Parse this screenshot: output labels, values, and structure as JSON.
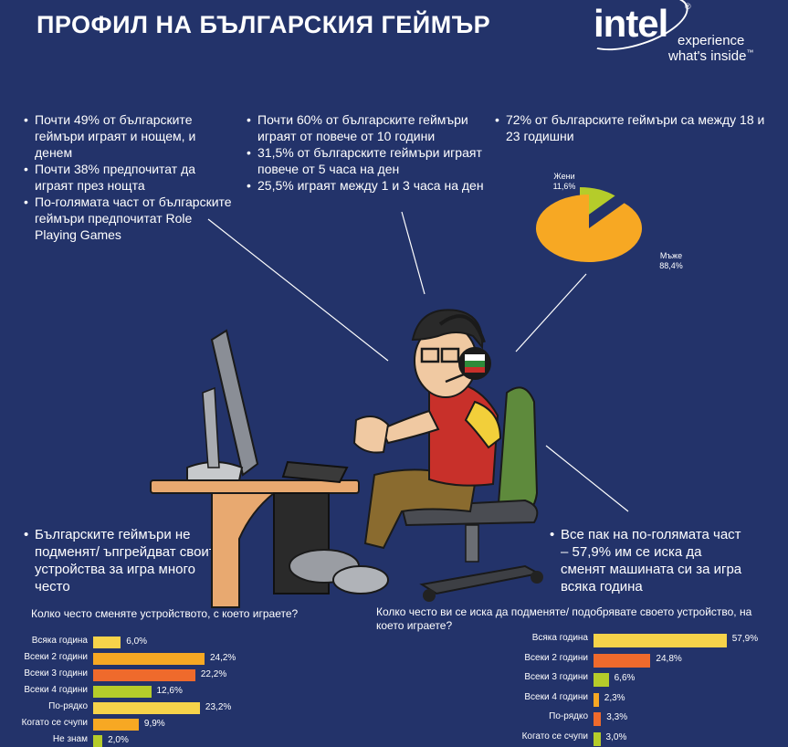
{
  "header": {
    "title": "ПРОФИЛ НА БЪЛГАРСКИЯ ГЕЙМЪР",
    "logo_word": "intel",
    "logo_reg": "®",
    "logo_tag1": "experience",
    "logo_tag2": "what's inside",
    "logo_tm": "™"
  },
  "facts": {
    "left": [
      "Почти 49% от българските геймъри играят и нощем, и денем",
      "Почти 38% предпочитат да играят през нощта",
      "По-голямата част от българските геймъри предпочитат Role Playing Games"
    ],
    "middle": [
      "Почти 60% от българските геймъри играят от повече от 10 години",
      "31,5% от българските геймъри играят повече от 5 часа на ден",
      "25,5% играят между 1 и 3 часа на ден"
    ],
    "right": [
      "72% от българските геймъри са между 18 и 23 годишни"
    ],
    "bottom_left": [
      "Българските геймъри не подменят/ ъпгрейдват своите устройства за игра много често"
    ],
    "bottom_right": [
      "Все пак на по-голямата част – 57,9% им се иска да сменят машината си за игра всяка година"
    ]
  },
  "colors": {
    "background": "#23336a",
    "yellow": "#f6d34a",
    "amber": "#f7a823",
    "orange": "#ef6a2c",
    "lime": "#b5cc2a"
  },
  "chart_data": [
    {
      "type": "pie",
      "labels": [
        "Жени",
        "Мъже"
      ],
      "values": [
        11.6,
        88.4
      ],
      "value_labels": [
        "11,6%",
        "88,4%"
      ],
      "colors": [
        "#b5cc2a",
        "#f7a823"
      ]
    },
    {
      "type": "bar",
      "orientation": "horizontal",
      "title": "Колко често сменяте устройството, с което играете?",
      "categories": [
        "Всяка година",
        "Всеки 2  години",
        "Всеки 3  години",
        "Всеки 4  години",
        "По-рядко",
        "Когато се счупи",
        "Не знам"
      ],
      "values": [
        6.0,
        24.2,
        22.2,
        12.6,
        23.2,
        9.9,
        2.0
      ],
      "value_labels": [
        "6,0%",
        "24,2%",
        "22,2%",
        "12,6%",
        "23,2%",
        "9,9%",
        "2,0%"
      ],
      "colors": [
        "#f6d34a",
        "#f7a823",
        "#ef6a2c",
        "#b5cc2a",
        "#f6d34a",
        "#f7a823",
        "#b5cc2a"
      ],
      "xlim": [
        0,
        25
      ]
    },
    {
      "type": "bar",
      "orientation": "horizontal",
      "title": "Колко често ви се иска да подменяте/ подобрявате своето устройство, на което играете?",
      "categories": [
        "Всяка година",
        "Всеки 2  години",
        "Всеки 3  години",
        "Всеки 4  години",
        "По-рядко",
        "Когато се счупи"
      ],
      "values": [
        57.9,
        24.8,
        6.6,
        2.3,
        3.3,
        3.0
      ],
      "value_labels": [
        "57,9%",
        "24,8%",
        "6,6%",
        "2,3%",
        "3,3%",
        "3,0%"
      ],
      "colors": [
        "#f6d34a",
        "#ef6a2c",
        "#b5cc2a",
        "#f7a823",
        "#ef6a2c",
        "#b5cc2a"
      ],
      "xlim": [
        0,
        58
      ]
    }
  ]
}
